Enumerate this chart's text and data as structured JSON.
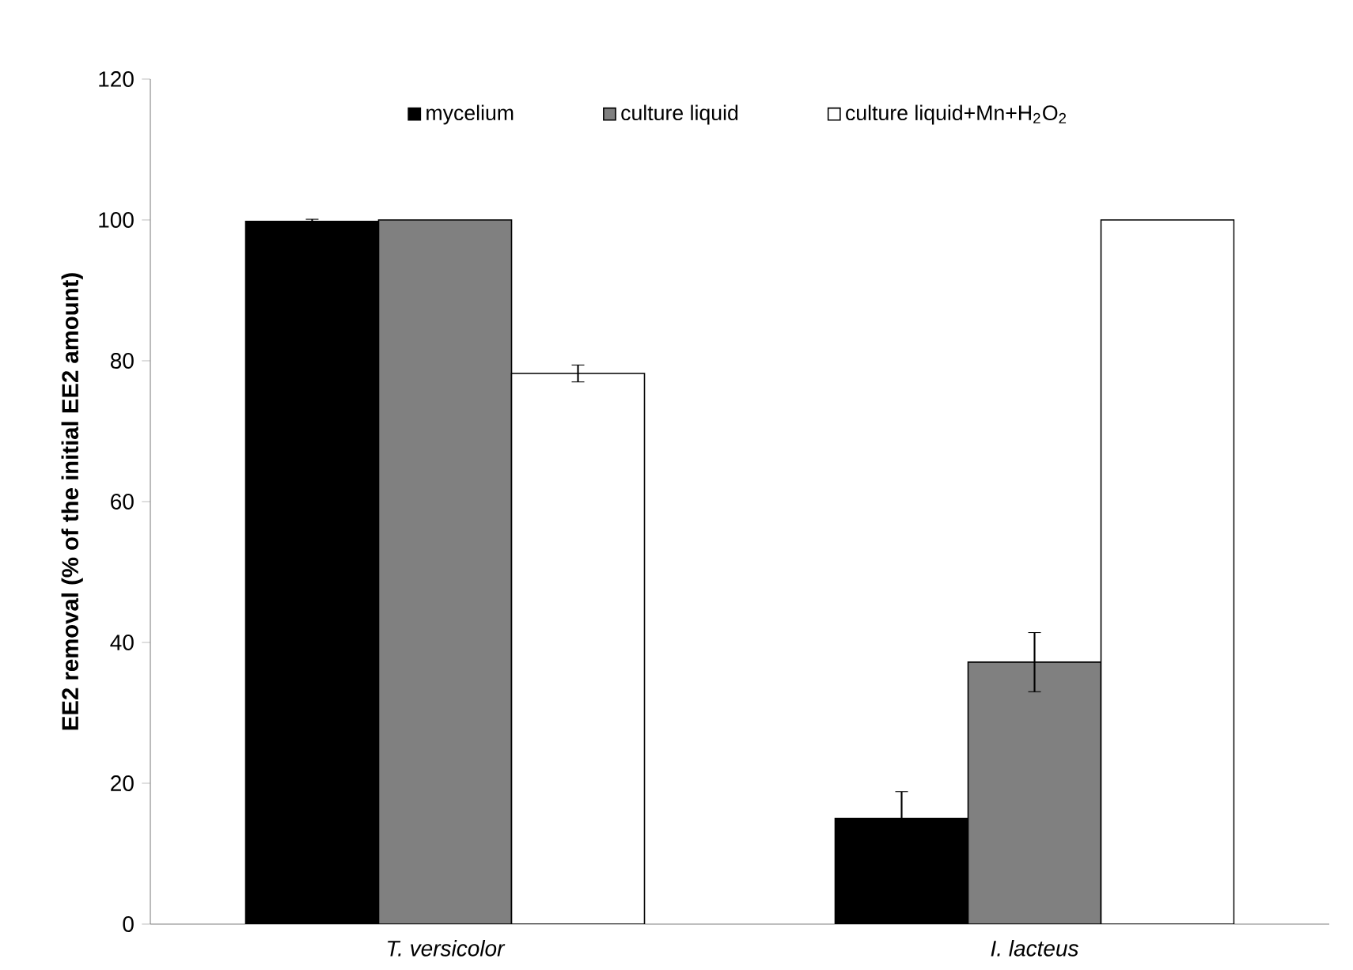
{
  "chart_data": {
    "type": "bar",
    "ylabel": "EE2 removal (% of the initial EE2 amount)",
    "categories": [
      "T. versicolor",
      "I. lacteus"
    ],
    "series": [
      {
        "name": "mycelium",
        "color": "#000000",
        "values": [
          99.8,
          15.0
        ],
        "errors": [
          0.3,
          3.8
        ]
      },
      {
        "name": "culture liquid",
        "color": "#808080",
        "values": [
          100.0,
          37.2
        ],
        "errors": [
          null,
          4.2
        ]
      },
      {
        "name": "culture liquid+Mn+H$_{2}$O$_{2}$",
        "color": "#ffffff",
        "values": [
          78.2,
          100.0
        ],
        "errors": [
          1.2,
          null
        ]
      }
    ],
    "ylim": [
      0,
      120
    ],
    "yticks": [
      0,
      20,
      40,
      60,
      80,
      100,
      120
    ],
    "legend": "top",
    "grid": false
  }
}
